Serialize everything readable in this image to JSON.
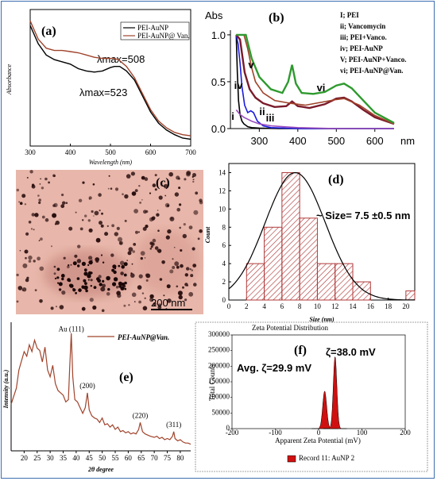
{
  "colors": {
    "frame": "#3d6fb0",
    "black": "#000000",
    "brown": "#a0432b",
    "blue": "#1a1adf",
    "green": "#2e9a2e",
    "darkred": "#7a1a2a",
    "purple": "#9a4dbb",
    "hatch": "#b03a3a",
    "tem_bg": "#e6b0a4",
    "zeta_red": "#d01010"
  },
  "chart_data": [
    {
      "panel_label": "(a)",
      "type": "line",
      "ylabel": "Absorbance",
      "xlabel": "Wavelength (nm)",
      "xticks": [
        "300",
        "400",
        "500",
        "600",
        "700"
      ],
      "xlim": [
        300,
        700
      ],
      "ylim": [
        0,
        0.6
      ],
      "legend": [
        "PEI-AuNP",
        "PEI-AuNP@ Van."
      ],
      "annotations": [
        "λmax=508",
        "λmax=523"
      ],
      "series": [
        {
          "name": "PEI-AuNP",
          "color": "black",
          "x": [
            300,
            320,
            340,
            360,
            380,
            400,
            420,
            440,
            460,
            480,
            500,
            510,
            523,
            540,
            560,
            580,
            600,
            620,
            640,
            660,
            680,
            700
          ],
          "y": [
            0.53,
            0.45,
            0.4,
            0.38,
            0.37,
            0.36,
            0.34,
            0.33,
            0.325,
            0.33,
            0.345,
            0.35,
            0.35,
            0.33,
            0.29,
            0.22,
            0.15,
            0.1,
            0.07,
            0.05,
            0.035,
            0.03
          ]
        },
        {
          "name": "PEI-AuNP@ Van.",
          "color": "brown",
          "x": [
            300,
            320,
            340,
            360,
            380,
            400,
            420,
            440,
            460,
            480,
            500,
            508,
            520,
            540,
            560,
            580,
            600,
            620,
            640,
            660,
            680,
            700
          ],
          "y": [
            0.55,
            0.47,
            0.43,
            0.42,
            0.42,
            0.415,
            0.41,
            0.4,
            0.39,
            0.385,
            0.385,
            0.385,
            0.38,
            0.35,
            0.3,
            0.23,
            0.16,
            0.11,
            0.08,
            0.06,
            0.05,
            0.045
          ]
        }
      ]
    },
    {
      "panel_label": "(b)",
      "type": "line",
      "ylabel": "Abs",
      "xlabel": "nm",
      "xticks": [
        "300",
        "400",
        "500",
        "600"
      ],
      "yticks": [
        "0.0",
        "0.5",
        "1.0"
      ],
      "xlim": [
        225,
        650
      ],
      "ylim": [
        0,
        1.05
      ],
      "legend": [
        "I; PEI",
        "ii; Vancomycin",
        "iii; PEI+Vanco.",
        "iv; PEI-AuNP",
        "V; PEI-AuNP+Vanco.",
        "vi;  PEI-AuNP@Van."
      ],
      "curve_labels": [
        "i",
        "ii",
        "iii",
        "iv",
        "v",
        "vi"
      ],
      "series": [
        {
          "name": "i",
          "color": "black",
          "x": [
            240,
            243,
            246,
            250,
            255,
            260,
            270,
            280,
            300,
            350,
            400,
            650
          ],
          "y": [
            1.0,
            0.6,
            0.3,
            0.15,
            0.08,
            0.05,
            0.02,
            0.01,
            0.005,
            0.0,
            0.0,
            0.0
          ]
        },
        {
          "name": "ii",
          "color": "blue",
          "x": [
            240,
            245,
            250,
            255,
            262,
            270,
            278,
            285,
            295,
            310,
            330,
            400,
            650
          ],
          "y": [
            1.0,
            0.9,
            0.7,
            0.45,
            0.25,
            0.17,
            0.19,
            0.17,
            0.08,
            0.03,
            0.01,
            0.0,
            0.0
          ]
        },
        {
          "name": "iii",
          "color": "purple",
          "x": [
            240,
            250,
            260,
            270,
            280,
            300,
            330,
            360,
            400,
            500,
            650
          ],
          "y": [
            0.2,
            0.15,
            0.12,
            0.1,
            0.08,
            0.05,
            0.03,
            0.02,
            0.01,
            0.0,
            0.0
          ]
        },
        {
          "name": "iv",
          "color": "darkred",
          "x": [
            240,
            250,
            262,
            275,
            290,
            310,
            340,
            370,
            385,
            400,
            430,
            470,
            500,
            520,
            540,
            570,
            600,
            650
          ],
          "y": [
            1.0,
            0.95,
            0.6,
            0.42,
            0.33,
            0.27,
            0.23,
            0.24,
            0.29,
            0.24,
            0.22,
            0.26,
            0.32,
            0.33,
            0.29,
            0.2,
            0.12,
            0.05
          ]
        },
        {
          "name": "v",
          "color": "brown",
          "x": [
            240,
            250,
            260,
            270,
            280,
            290,
            310,
            340,
            380,
            420,
            500,
            520,
            560,
            600,
            650
          ],
          "y": [
            1.0,
            1.0,
            1.0,
            0.85,
            0.65,
            0.5,
            0.38,
            0.3,
            0.27,
            0.25,
            0.31,
            0.32,
            0.25,
            0.14,
            0.05
          ]
        },
        {
          "name": "vi",
          "color": "green",
          "x": [
            240,
            250,
            265,
            280,
            300,
            330,
            360,
            375,
            385,
            395,
            410,
            440,
            470,
            500,
            520,
            540,
            570,
            600,
            650
          ],
          "y": [
            1.0,
            1.0,
            1.0,
            0.75,
            0.55,
            0.42,
            0.38,
            0.5,
            0.68,
            0.48,
            0.38,
            0.37,
            0.39,
            0.46,
            0.48,
            0.43,
            0.3,
            0.17,
            0.06
          ]
        }
      ]
    },
    {
      "panel_label": "(d)",
      "type": "bar",
      "ylabel": "Count",
      "xlabel": "Size (nm)",
      "xticks": [
        "0",
        "2",
        "4",
        "6",
        "8",
        "10",
        "12",
        "14",
        "16",
        "18",
        "20"
      ],
      "yticks": [
        "0",
        "2",
        "4",
        "6",
        "8",
        "10",
        "12",
        "14"
      ],
      "xlim": [
        0,
        21
      ],
      "ylim": [
        0,
        15
      ],
      "annotation": "~ Size= 7.5 ±0.5 nm",
      "bins": [
        [
          2,
          4
        ],
        [
          4,
          6
        ],
        [
          6,
          8
        ],
        [
          8,
          10
        ],
        [
          10,
          12
        ],
        [
          12,
          14
        ],
        [
          14,
          16
        ],
        [
          16,
          18
        ],
        [
          18,
          20
        ],
        [
          20,
          22
        ]
      ],
      "values": [
        4,
        8,
        14,
        9,
        4,
        4,
        2,
        0,
        0,
        1
      ],
      "fit": {
        "type": "gaussian",
        "mean": 7.5,
        "sigma": 3.4,
        "peak": 14
      }
    },
    {
      "panel_label": "(e)",
      "type": "line",
      "ylabel": "Intensity (a.u.)",
      "xlabel": "2θ degree",
      "xticks": [
        "20",
        "25",
        "30",
        "35",
        "40",
        "45",
        "50",
        "55",
        "60",
        "65",
        "70",
        "75",
        "80"
      ],
      "xlim": [
        15,
        84
      ],
      "legend": [
        "PEI-AuNP@Van."
      ],
      "peak_labels": [
        "Au (111)",
        "(200)",
        "(220)",
        "(311)"
      ],
      "series": [
        {
          "name": "PEI-AuNP@Van.",
          "color": "brown",
          "x": [
            15,
            16,
            17,
            18,
            19,
            20,
            21,
            22,
            23,
            24,
            25,
            26,
            27,
            28,
            29,
            30,
            31,
            32,
            33,
            34,
            35,
            36,
            37,
            37.5,
            38.1,
            38.7,
            39.5,
            40.5,
            41.5,
            42.5,
            43.5,
            44.3,
            45,
            46,
            47,
            48,
            49,
            50,
            51,
            52,
            53,
            54,
            55,
            56,
            57,
            58,
            59,
            60,
            61,
            62,
            63,
            64,
            64.6,
            65.5,
            66.5,
            67.5,
            68.5,
            70,
            71,
            72,
            73,
            74,
            75,
            76,
            77,
            77.5,
            78,
            79,
            80,
            81,
            82,
            83,
            84
          ],
          "y": [
            0.38,
            0.45,
            0.52,
            0.68,
            0.76,
            0.84,
            0.8,
            0.9,
            0.84,
            0.94,
            0.87,
            0.85,
            0.75,
            0.88,
            0.68,
            0.62,
            0.72,
            0.56,
            0.5,
            0.48,
            0.46,
            0.4,
            0.42,
            0.7,
            1.0,
            0.62,
            0.42,
            0.4,
            0.35,
            0.3,
            0.35,
            0.48,
            0.33,
            0.28,
            0.26,
            0.25,
            0.22,
            0.26,
            0.2,
            0.21,
            0.18,
            0.2,
            0.16,
            0.18,
            0.14,
            0.15,
            0.13,
            0.14,
            0.12,
            0.13,
            0.12,
            0.16,
            0.22,
            0.14,
            0.12,
            0.11,
            0.1,
            0.09,
            0.1,
            0.08,
            0.09,
            0.07,
            0.08,
            0.07,
            0.1,
            0.14,
            0.08,
            0.06,
            0.07,
            0.05,
            0.04,
            0.04,
            0.03
          ]
        }
      ]
    },
    {
      "panel_label": "(f)",
      "type": "bar",
      "title": "Zeta Potential Distribution",
      "ylabel": "Total Counts",
      "xlabel": "Apparent Zeta Potential  (mV)",
      "xticks": [
        "-200",
        "-100",
        "0",
        "100",
        "200"
      ],
      "yticks": [
        "0",
        "50000",
        "100000",
        "150000",
        "200000",
        "250000",
        "300000"
      ],
      "xlim": [
        -200,
        200
      ],
      "ylim": [
        0,
        300000
      ],
      "annotations": [
        "Avg. ζ=29.9 mV",
        "ζ=38.0 mV"
      ],
      "legend": [
        "Record 11: AuNP 2"
      ],
      "peaks": [
        {
          "center": 14,
          "height": 120000,
          "width": 10
        },
        {
          "center": 38,
          "height": 230000,
          "width": 9
        }
      ]
    }
  ],
  "images": [
    {
      "panel_label": "(c)",
      "scale_bar": "200 nm"
    }
  ]
}
